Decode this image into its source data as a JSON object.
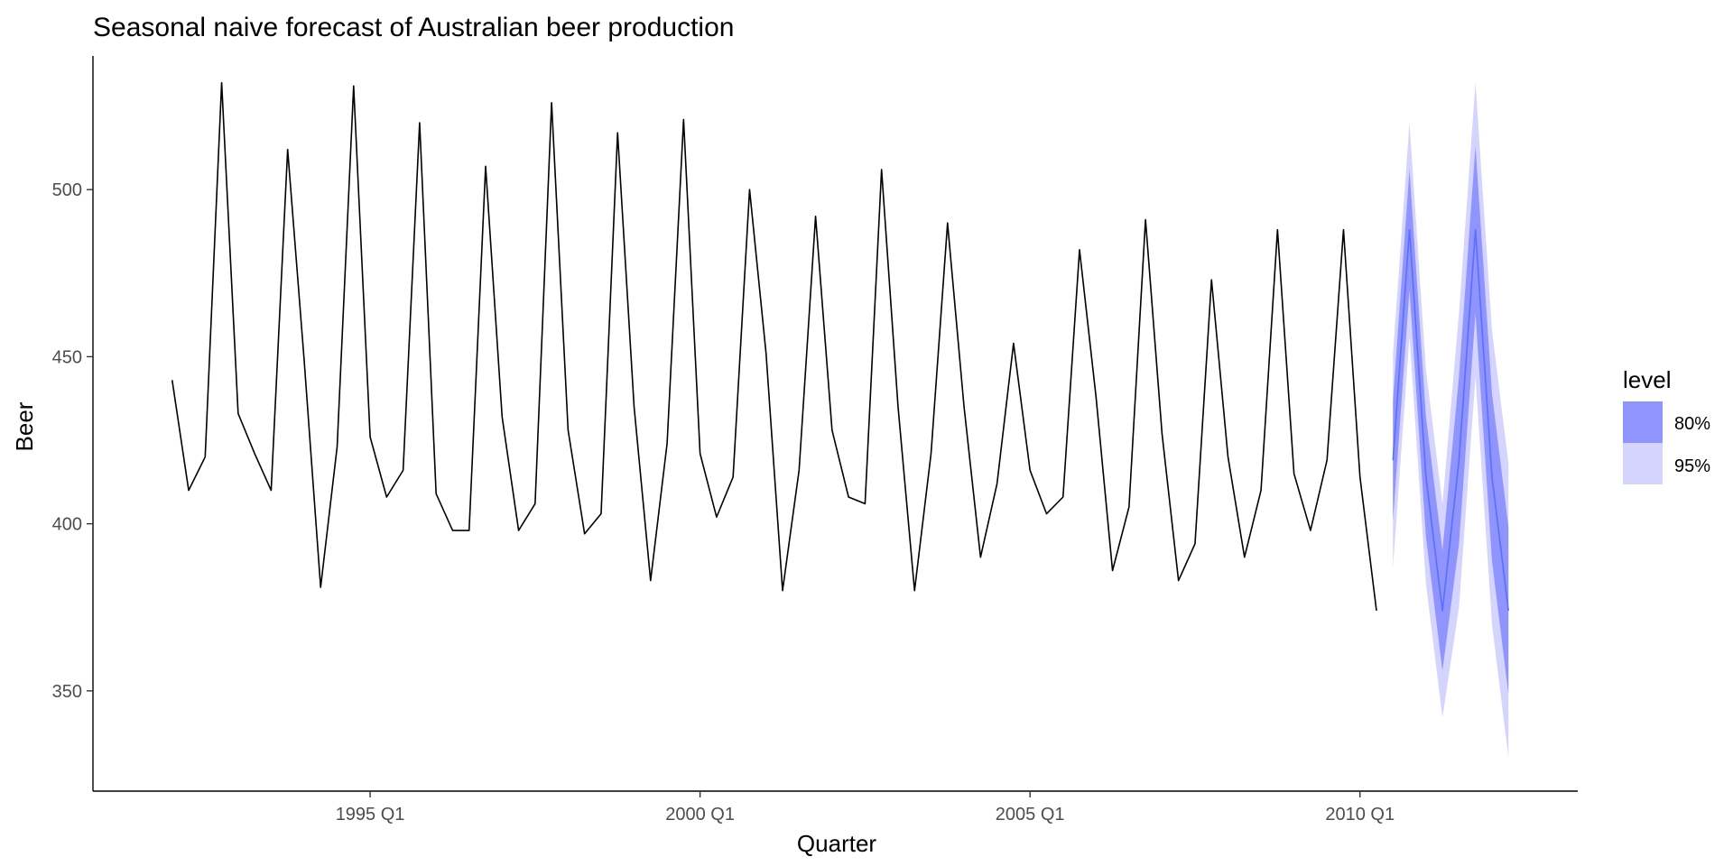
{
  "chart_data": {
    "type": "line",
    "title": "Seasonal naive forecast of Australian beer production",
    "xlabel": "Quarter",
    "ylabel": "Beer",
    "x_ticks": [
      {
        "label": "1995 Q1",
        "t": 1995.0
      },
      {
        "label": "2000 Q1",
        "t": 2000.0
      },
      {
        "label": "2005 Q1",
        "t": 2005.0
      },
      {
        "label": "2010 Q1",
        "t": 2010.0
      }
    ],
    "y_ticks": [
      350,
      400,
      450,
      500
    ],
    "xlim": [
      1990.8,
      2013.3
    ],
    "ylim": [
      320,
      540
    ],
    "grid": false,
    "legend_position": "right",
    "series": [
      {
        "start": "1992 Q1",
        "values": [
          443,
          410,
          420,
          532,
          433,
          421,
          410,
          512,
          449,
          381,
          423,
          531,
          426,
          408,
          416,
          520,
          409,
          398,
          398,
          507,
          432,
          398,
          406,
          526,
          428,
          397,
          403,
          517,
          435,
          383,
          424,
          521,
          421,
          402,
          414,
          500,
          451,
          380,
          416,
          492,
          428,
          408,
          406,
          506,
          435,
          380,
          421,
          490,
          435,
          390,
          412,
          454,
          416,
          403,
          408,
          482,
          438,
          386,
          405,
          491,
          427,
          383,
          394,
          473,
          420,
          390,
          410,
          488,
          415,
          398,
          419,
          488,
          414,
          374
        ]
      }
    ],
    "forecast": {
      "start": "2010 Q3",
      "color": "#5a6fff",
      "mean": [
        419,
        488,
        414,
        374,
        419,
        488,
        414,
        374
      ],
      "levels": [
        {
          "name": "80%",
          "color": "#8f94ff",
          "lower": [
            401,
            470,
            396,
            356,
            394,
            463,
            389,
            349
          ],
          "upper": [
            437,
            506,
            432,
            392,
            444,
            513,
            439,
            399
          ]
        },
        {
          "name": "95%",
          "color": "#d4d4ff",
          "lower": [
            387,
            456,
            382,
            342,
            375,
            444,
            370,
            330
          ],
          "upper": [
            451,
            520,
            446,
            406,
            463,
            532,
            458,
            418
          ]
        }
      ]
    },
    "legend": {
      "title": "level",
      "entries": [
        {
          "label": "80%",
          "color": "#8f94ff"
        },
        {
          "label": "95%",
          "color": "#d4d4ff"
        }
      ]
    }
  }
}
